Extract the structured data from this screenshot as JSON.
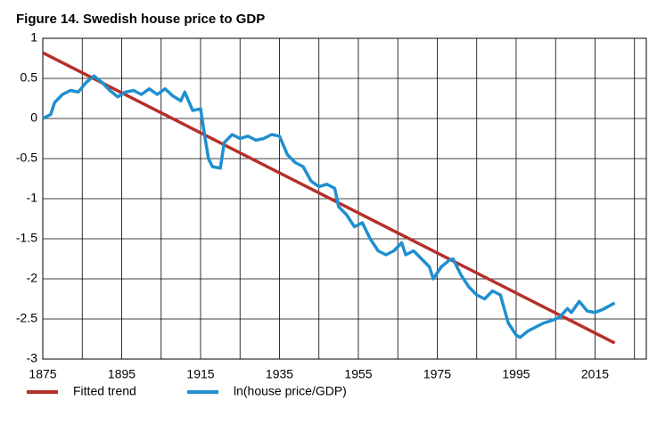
{
  "chart_data": {
    "type": "line",
    "title": "Figure 14. Swedish house price to GDP",
    "xlim": [
      1875,
      2028
    ],
    "xticks": [
      1875,
      1895,
      1915,
      1935,
      1955,
      1975,
      1995,
      2015
    ],
    "xgrid": [
      1885,
      1905,
      1925,
      1945,
      1965,
      1985,
      2005,
      2025
    ],
    "ylim": [
      -3,
      1
    ],
    "yticks": [
      -3,
      -2.5,
      -2,
      -1.5,
      -1,
      -0.5,
      0,
      0.5,
      1
    ],
    "grid": true,
    "legend": "bottom",
    "series": [
      {
        "name": "Fitted trend",
        "color": "#b5302a",
        "x": [
          1875,
          2020
        ],
        "values": [
          0.82,
          -2.8
        ]
      },
      {
        "name": "ln(house price/GDP)",
        "color": "#1f8fcf",
        "x": [
          1875,
          1877,
          1878,
          1880,
          1882,
          1884,
          1886,
          1888,
          1890,
          1892,
          1894,
          1896,
          1898,
          1900,
          1902,
          1904,
          1906,
          1908,
          1910,
          1911,
          1913,
          1915,
          1916,
          1917,
          1918,
          1920,
          1921,
          1923,
          1925,
          1927,
          1929,
          1931,
          1933,
          1935,
          1937,
          1939,
          1941,
          1943,
          1945,
          1947,
          1949,
          1950,
          1952,
          1954,
          1956,
          1958,
          1960,
          1962,
          1964,
          1966,
          1967,
          1969,
          1971,
          1973,
          1974,
          1976,
          1978,
          1979,
          1981,
          1983,
          1985,
          1987,
          1989,
          1991,
          1993,
          1995,
          1996,
          1998,
          2000,
          2002,
          2004,
          2006,
          2008,
          2009,
          2011,
          2013,
          2015,
          2017,
          2020
        ],
        "values": [
          0,
          0.05,
          0.2,
          0.3,
          0.35,
          0.33,
          0.45,
          0.53,
          0.45,
          0.35,
          0.27,
          0.33,
          0.35,
          0.3,
          0.37,
          0.3,
          0.37,
          0.28,
          0.22,
          0.33,
          0.1,
          0.12,
          -0.2,
          -0.5,
          -0.6,
          -0.62,
          -0.3,
          -0.2,
          -0.25,
          -0.22,
          -0.27,
          -0.25,
          -0.2,
          -0.22,
          -0.45,
          -0.55,
          -0.6,
          -0.78,
          -0.85,
          -0.82,
          -0.87,
          -1.1,
          -1.2,
          -1.35,
          -1.3,
          -1.5,
          -1.65,
          -1.7,
          -1.65,
          -1.55,
          -1.7,
          -1.65,
          -1.75,
          -1.85,
          -2.0,
          -1.85,
          -1.77,
          -1.75,
          -1.95,
          -2.1,
          -2.2,
          -2.25,
          -2.15,
          -2.2,
          -2.55,
          -2.7,
          -2.73,
          -2.65,
          -2.6,
          -2.55,
          -2.52,
          -2.48,
          -2.37,
          -2.42,
          -2.28,
          -2.4,
          -2.42,
          -2.38,
          -2.3
        ]
      }
    ]
  }
}
